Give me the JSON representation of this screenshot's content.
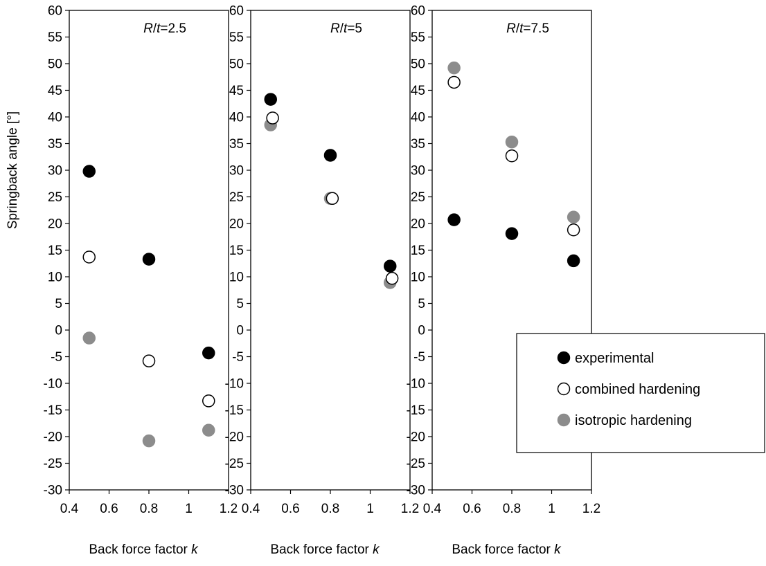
{
  "chart_data": {
    "type": "scatter",
    "ylabel": "Springback angle [°]",
    "xlabel_text": "Back force factor ",
    "xlabel_var": "k",
    "xlim": [
      0.4,
      1.2
    ],
    "ylim": [
      -30,
      60
    ],
    "xticks": [
      "0.4",
      "0.6",
      "0.8",
      "1",
      "1.2"
    ],
    "yticks": [
      "-30",
      "-25",
      "-20",
      "-15",
      "-10",
      "-5",
      "0",
      "5",
      "10",
      "15",
      "20",
      "25",
      "30",
      "35",
      "40",
      "45",
      "50",
      "55",
      "60"
    ],
    "grid": false,
    "legend": {
      "placement": "bottom-right",
      "entries": [
        {
          "name": "experimental",
          "fill": "#000000",
          "stroke": "#000000"
        },
        {
          "name": "combined hardening",
          "fill": "#ffffff",
          "stroke": "#000000"
        },
        {
          "name": "isotropic hardening",
          "fill": "#8c8c8c",
          "stroke": "#8c8c8c"
        }
      ]
    },
    "panels": [
      {
        "annotation": {
          "var1": "R",
          "sep": "/",
          "var2": "t",
          "value": "=2.5"
        },
        "series": [
          {
            "name": "experimental",
            "points": [
              [
                0.5,
                29.8
              ],
              [
                0.8,
                13.3
              ],
              [
                1.1,
                -4.3
              ]
            ]
          },
          {
            "name": "combined hardening",
            "points": [
              [
                0.5,
                13.7
              ],
              [
                0.8,
                -5.8
              ],
              [
                1.1,
                -13.3
              ]
            ]
          },
          {
            "name": "isotropic hardening",
            "points": [
              [
                0.5,
                -1.5
              ],
              [
                0.8,
                -20.8
              ],
              [
                1.1,
                -18.8
              ]
            ]
          }
        ]
      },
      {
        "annotation": {
          "var1": "R",
          "sep": "/",
          "var2": "t",
          "value": "=5"
        },
        "series": [
          {
            "name": "experimental",
            "points": [
              [
                0.5,
                43.3
              ],
              [
                0.8,
                32.8
              ],
              [
                1.1,
                12.0
              ]
            ]
          },
          {
            "name": "combined hardening",
            "points": [
              [
                0.51,
                39.8
              ],
              [
                0.81,
                24.7
              ],
              [
                1.11,
                9.7
              ]
            ]
          },
          {
            "name": "isotropic hardening",
            "points": [
              [
                0.5,
                38.5
              ],
              [
                0.8,
                24.7
              ],
              [
                1.1,
                8.9
              ]
            ]
          }
        ]
      },
      {
        "annotation": {
          "var1": "R",
          "sep": "/",
          "var2": "t",
          "value": "=7.5"
        },
        "series": [
          {
            "name": "experimental",
            "points": [
              [
                0.51,
                20.7
              ],
              [
                0.8,
                18.1
              ],
              [
                1.11,
                13.0
              ]
            ]
          },
          {
            "name": "combined hardening",
            "points": [
              [
                0.51,
                46.5
              ],
              [
                0.8,
                32.7
              ],
              [
                1.11,
                18.8
              ]
            ]
          },
          {
            "name": "isotropic hardening",
            "points": [
              [
                0.51,
                49.2
              ],
              [
                0.8,
                35.3
              ],
              [
                1.11,
                21.2
              ]
            ]
          }
        ]
      }
    ]
  }
}
